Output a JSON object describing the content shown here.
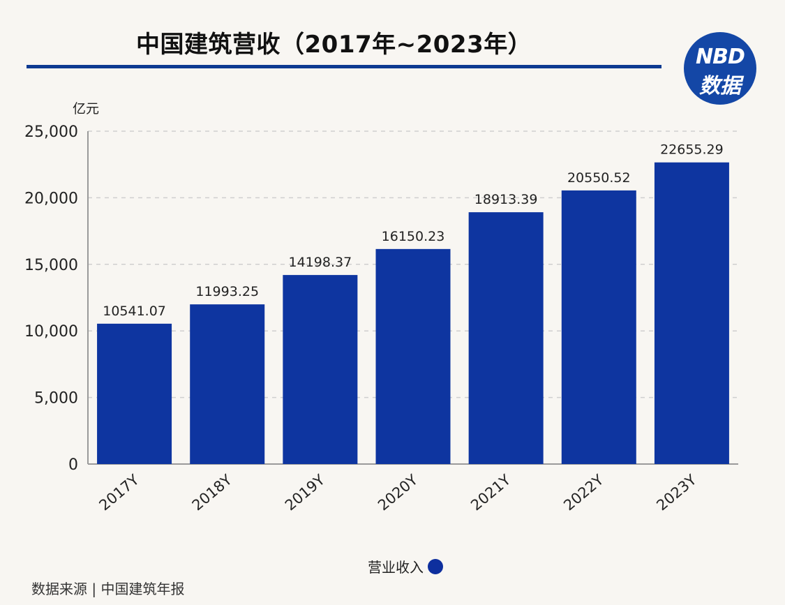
{
  "header": {
    "title": "中国建筑营收（2017年~2023年）",
    "logo_top": "NBD",
    "logo_bottom": "数据"
  },
  "colors": {
    "bar": "#0e35a0",
    "rule": "#0d3a91",
    "logo_bg": "#1447a6",
    "grid": "#cfcfcf",
    "axis": "#9a9a9a"
  },
  "chart_data": {
    "type": "bar",
    "unit_label": "亿元",
    "categories": [
      "2017Y",
      "2018Y",
      "2019Y",
      "2020Y",
      "2021Y",
      "2022Y",
      "2023Y"
    ],
    "series": [
      {
        "name": "营业收入",
        "values": [
          10541.07,
          11993.25,
          14198.37,
          16150.23,
          18913.39,
          20550.52,
          22655.29
        ]
      }
    ],
    "data_labels": [
      "10541.07",
      "11993.25",
      "14198.37",
      "16150.23",
      "18913.39",
      "20550.52",
      "22655.29"
    ],
    "ylim": [
      0,
      25000
    ],
    "yticks": [
      0,
      5000,
      10000,
      15000,
      20000,
      25000
    ],
    "ytick_labels": [
      "0",
      "5,000",
      "10,000",
      "15,000",
      "20,000",
      "25,000"
    ],
    "grid": true,
    "legend_position": "bottom-center"
  },
  "legend": {
    "label": "营业收入"
  },
  "footer": {
    "source": "数据来源 | 中国建筑年报"
  }
}
